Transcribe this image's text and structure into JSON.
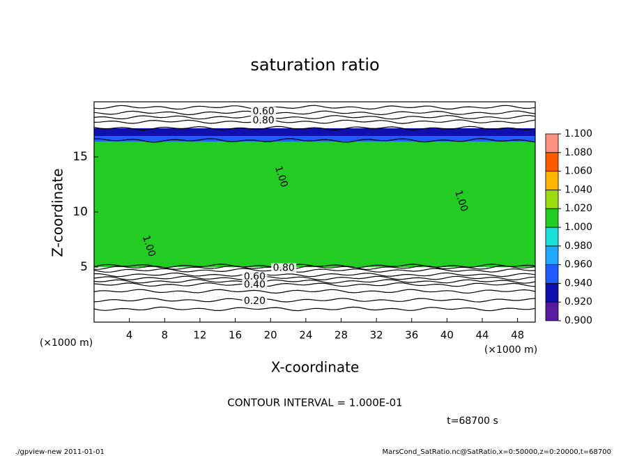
{
  "chart_data": {
    "type": "contour",
    "title": "saturation ratio",
    "x_label": "X-coordinate",
    "y_label": "Z-coordinate",
    "x_unit": "(×1000 m)",
    "y_unit": "(×1000 m)",
    "xlim": [
      0,
      50
    ],
    "ylim": [
      0,
      20
    ],
    "xticks": [
      4,
      8,
      12,
      16,
      20,
      24,
      28,
      32,
      36,
      40,
      44,
      48
    ],
    "yticks": [
      5,
      10,
      15
    ],
    "colorbar_ticks": [
      {
        "value": 0.9,
        "label": "0.900"
      },
      {
        "value": 0.92,
        "label": "0.920"
      },
      {
        "value": 0.94,
        "label": "0.940"
      },
      {
        "value": 0.96,
        "label": "0.960"
      },
      {
        "value": 0.98,
        "label": "0.980"
      },
      {
        "value": 1.0,
        "label": "1.000"
      },
      {
        "value": 1.02,
        "label": "1.020"
      },
      {
        "value": 1.04,
        "label": "1.040"
      },
      {
        "value": 1.06,
        "label": "1.060"
      },
      {
        "value": 1.08,
        "label": "1.080"
      },
      {
        "value": 1.1,
        "label": "1.100"
      }
    ],
    "colors": [
      "#5a1aa0",
      "#1010b0",
      "#1e5cff",
      "#1ea8ff",
      "#18e0d8",
      "#22cc22",
      "#9adc10",
      "#ffb400",
      "#ff5a00",
      "#ff9080"
    ],
    "bands": [
      {
        "zlim": [
          5,
          16.5
        ],
        "value": 1.01
      },
      {
        "zlim": [
          16.4,
          17.3
        ],
        "value": 0.95
      },
      {
        "zlim": [
          16.9,
          17.6
        ],
        "value": 0.93
      }
    ],
    "contours": [
      {
        "level": 0.1,
        "z": 1.2
      },
      {
        "level": 0.2,
        "z": 2.0
      },
      {
        "level": 0.3,
        "z": 2.8
      },
      {
        "level": 0.4,
        "z": 3.4
      },
      {
        "level": 0.5,
        "z": 3.7
      },
      {
        "level": 0.6,
        "z": 4.0
      },
      {
        "level": 0.7,
        "z": 4.3
      },
      {
        "level": 0.8,
        "z": 4.7
      },
      {
        "level": 0.9,
        "z": 4.95
      },
      {
        "level": 1.0,
        "z": 5.1
      },
      {
        "level": 1.0,
        "z": 16.5
      },
      {
        "level": 0.9,
        "z": 17.6
      },
      {
        "level": 0.8,
        "z": 18.2
      },
      {
        "level": 0.7,
        "z": 18.6
      },
      {
        "level": 0.6,
        "z": 19.0
      },
      {
        "level": 0.5,
        "z": 19.5
      }
    ],
    "contour_labels": [
      {
        "value": 0.6,
        "label": "0.60",
        "x": 19.2,
        "z": 19.1
      },
      {
        "value": 0.8,
        "label": "0.80",
        "x": 19.2,
        "z": 18.3
      },
      {
        "value": 0.8,
        "label": "0.80",
        "x": 21.5,
        "z": 4.9
      },
      {
        "value": 0.6,
        "label": "0.60",
        "x": 18.2,
        "z": 4.1
      },
      {
        "value": 0.4,
        "label": "0.40",
        "x": 18.2,
        "z": 3.4
      },
      {
        "value": 0.2,
        "label": "0.20",
        "x": 18.2,
        "z": 1.9
      },
      {
        "value": 1.0,
        "label": "1.00",
        "x": 6.2,
        "z": 6.9
      },
      {
        "value": 1.0,
        "label": "1.00",
        "x": 21.2,
        "z": 13.2
      },
      {
        "value": 1.0,
        "label": "1.00",
        "x": 41.6,
        "z": 11.0
      }
    ],
    "contour_interval": "CONTOUR INTERVAL = 1.000E-01",
    "time_label": "t=68700 s",
    "footer_left": "./gpview-new   2011-01-01",
    "footer_right": "MarsCond_SatRatio.nc@SatRatio,x=0:50000,z=0:20000,t=68700"
  }
}
